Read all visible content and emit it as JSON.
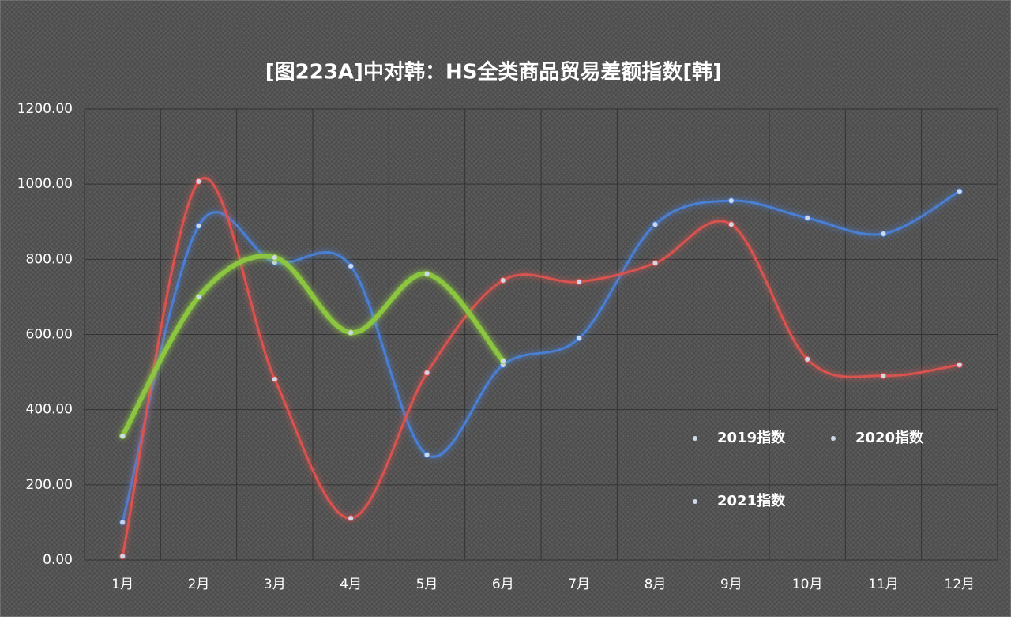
{
  "chart_data": {
    "type": "line",
    "title": "[图223A]中对韩：HS全类商品贸易差额指数[韩]",
    "categories": [
      "1月",
      "2月",
      "3月",
      "4月",
      "5月",
      "6月",
      "7月",
      "8月",
      "9月",
      "10月",
      "11月",
      "12月"
    ],
    "series": [
      {
        "name": "2019指数",
        "color": "#4a7fd4",
        "values": [
          100,
          889,
          792,
          782,
          280,
          519,
          590,
          893,
          956,
          910,
          868,
          981
        ]
      },
      {
        "name": "2020指数",
        "color": "#d9534f",
        "values": [
          10,
          1007,
          481,
          111,
          498,
          744,
          740,
          790,
          893,
          534,
          490,
          519
        ]
      },
      {
        "name": "2021指数",
        "color": "#8cc63f",
        "values": [
          330,
          700,
          805,
          605,
          761,
          530,
          null,
          null,
          null,
          null,
          null,
          null
        ]
      }
    ],
    "ylim": [
      0,
      1200
    ],
    "yticks": [
      {
        "value": 0,
        "label": "0.00"
      },
      {
        "value": 200,
        "label": "200.00"
      },
      {
        "value": 400,
        "label": "400.00"
      },
      {
        "value": 600,
        "label": "600.00"
      },
      {
        "value": 800,
        "label": "800.00"
      },
      {
        "value": 1000,
        "label": "1000.00"
      },
      {
        "value": 1200,
        "label": "1200.00"
      }
    ],
    "grid": true
  }
}
